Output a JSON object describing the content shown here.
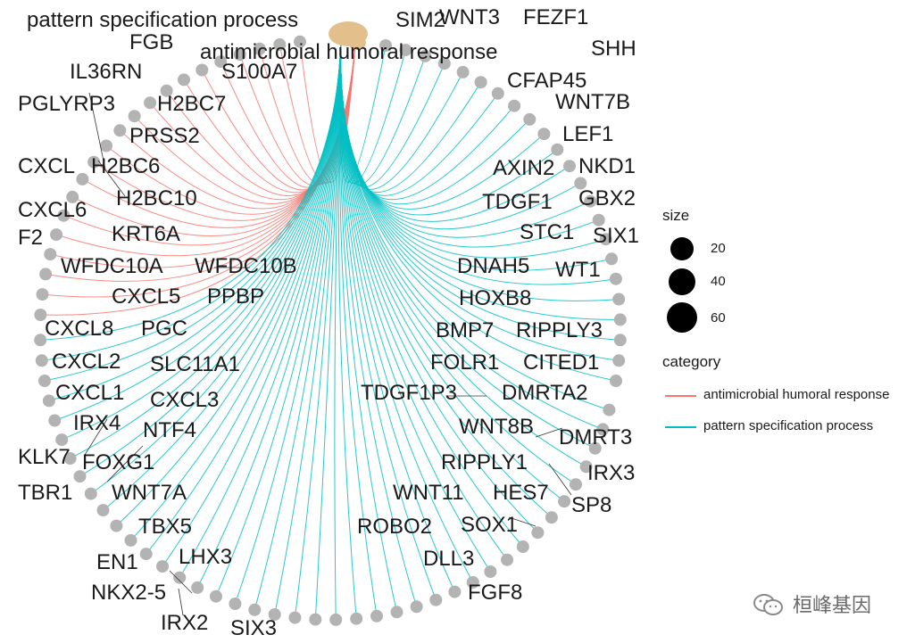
{
  "categories": [
    {
      "name": "antimicrobial humoral response",
      "color": "#F8766D"
    },
    {
      "name": "pattern specification process",
      "color": "#00BFC4"
    }
  ],
  "gene_labels": {
    "antimicrobial": [
      "FGB",
      "IL36RN",
      "S100A7",
      "PGLYRP3",
      "H2BC7",
      "PRSS2",
      "CXCL",
      "H2BC6",
      "H2BC10",
      "CXCL6",
      "KRT6A",
      "F2",
      "WFDC10A",
      "WFDC10B",
      "CXCL5",
      "PPBP",
      "CXCL8",
      "PGC",
      "CXCL2",
      "SLC11A1",
      "CXCL1",
      "CXCL3"
    ],
    "pattern": [
      "WNT3",
      "FEZF1",
      "SIM2",
      "SHH",
      "CFAP45",
      "WNT7B",
      "LEF1",
      "NKD1",
      "AXIN2",
      "GBX2",
      "TDGF1",
      "STC1",
      "SIX1",
      "DNAH5",
      "WT1",
      "HOXB8",
      "BMP7",
      "RIPPLY3",
      "FOLR1",
      "CITED1",
      "TDGF1P3",
      "DMRTA2",
      "WNT8B",
      "DMRT3",
      "IRX3",
      "RIPPLY1",
      "HES7",
      "SP8",
      "WNT11",
      "SOX1",
      "ROBO2",
      "DLL3",
      "FGF8",
      "IRX4",
      "NTF4",
      "KLK7",
      "FOXG1",
      "TBR1",
      "WNT7A",
      "TBX5",
      "LHX3",
      "EN1",
      "NKX2-5",
      "IRX2",
      "SIX3"
    ]
  },
  "legend": {
    "size_title": "size",
    "size_values": [
      20,
      40,
      60
    ],
    "category_title": "category",
    "category_items": [
      "antimicrobial humoral response",
      "pattern specification process"
    ]
  },
  "watermark": "桓峰基因"
}
